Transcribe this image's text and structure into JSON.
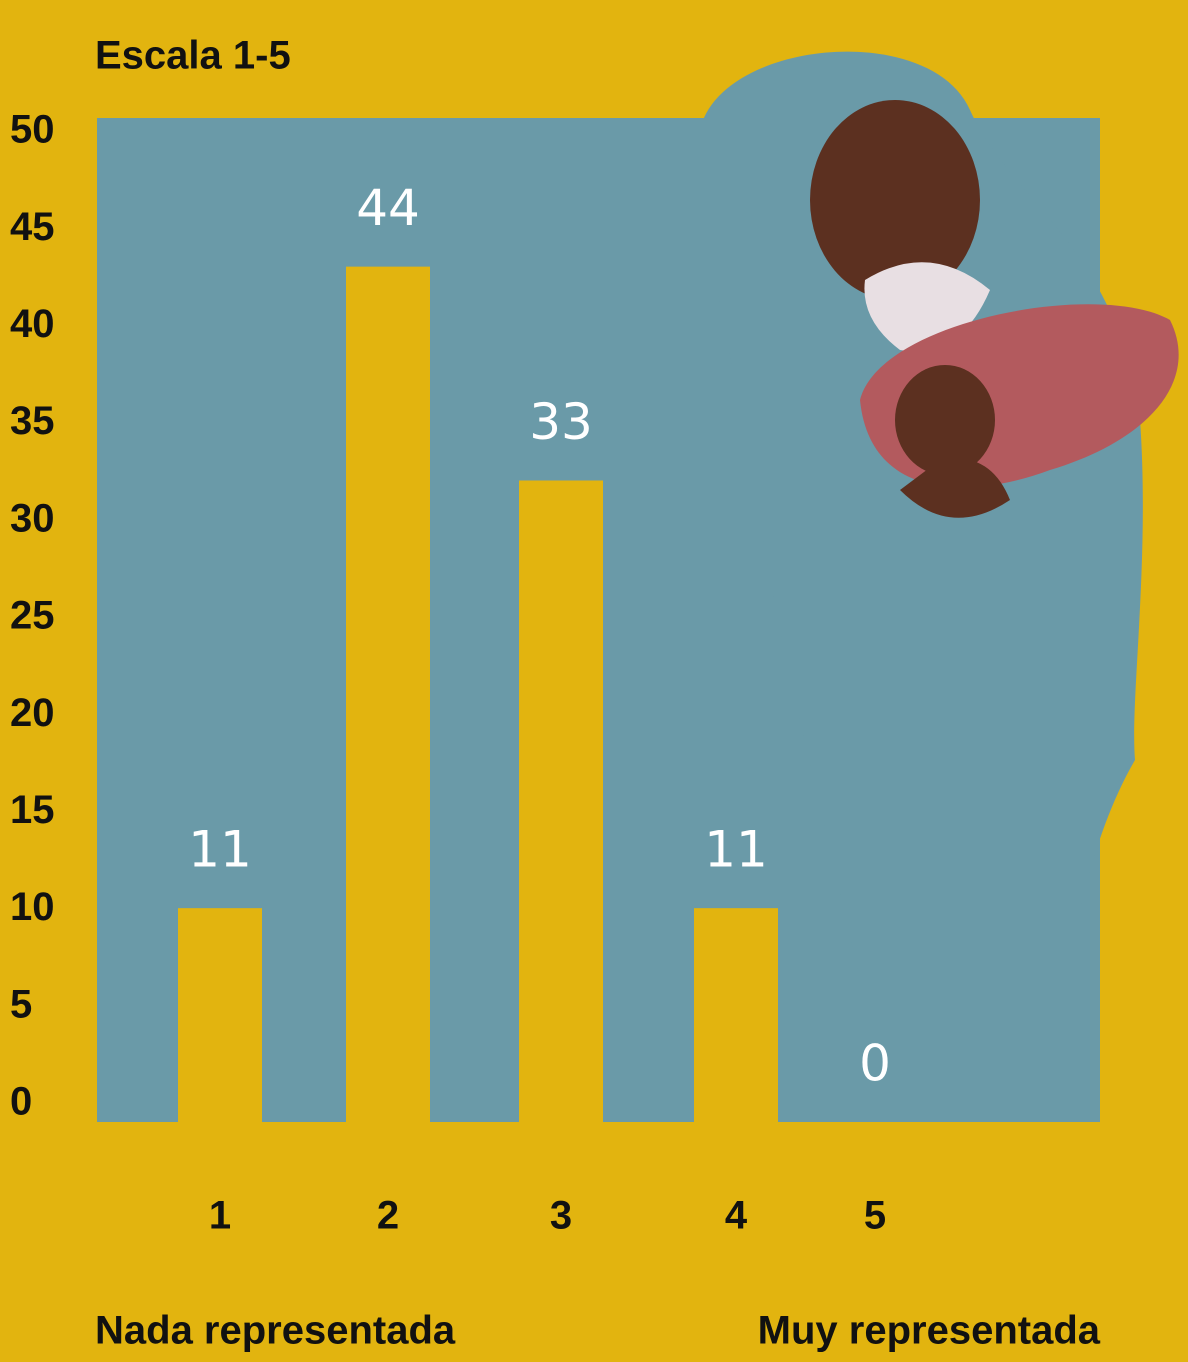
{
  "chart_data": {
    "type": "bar",
    "title": "Escala 1-5",
    "categories": [
      "1",
      "2",
      "3",
      "4",
      "5"
    ],
    "values": [
      11,
      44,
      33,
      11,
      0
    ],
    "color": "#e2b40f",
    "panel_color": "#6a9aa8",
    "label_color": "#ffffff",
    "ylim": [
      0,
      50
    ],
    "yticks": [
      0,
      5,
      10,
      15,
      20,
      25,
      30,
      35,
      40,
      45,
      50
    ],
    "grid": false,
    "annotations": [
      "Nada representada",
      "Muy representada"
    ]
  }
}
